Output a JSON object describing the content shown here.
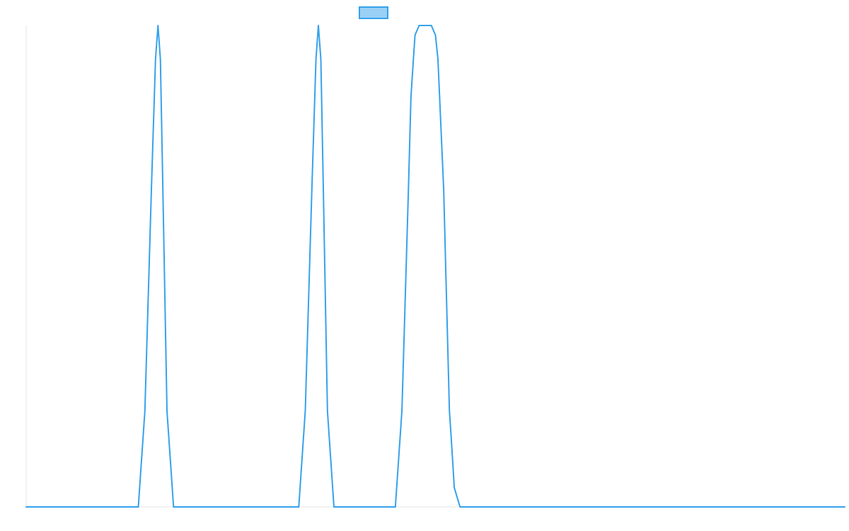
{
  "chart_data": {
    "type": "line",
    "title": "",
    "xlabel": "",
    "ylabel": "",
    "xlim": [
      0,
      100
    ],
    "ylim": [
      0,
      1
    ],
    "grid": false,
    "legend": {
      "position": "top-center",
      "entries": [
        {
          "name": "",
          "color": "#36a2eb",
          "fill": "#9ad0f5"
        }
      ]
    },
    "series": [
      {
        "name": "",
        "color": "#36a2eb",
        "x": [
          0,
          13.7,
          14.5,
          15.3,
          15.8,
          16.1,
          16.4,
          16.7,
          17.2,
          18.0,
          18.8,
          33.3,
          34.1,
          34.9,
          35.4,
          35.7,
          36.0,
          36.3,
          36.8,
          37.6,
          38.4,
          45.1,
          45.9,
          46.7,
          47.0,
          47.3,
          47.5,
          48.0,
          49.5,
          50.0,
          50.3,
          51.0,
          51.7,
          51.9,
          52.3,
          53.0,
          53.8,
          100
        ],
        "y": [
          0,
          0,
          0.2,
          0.66,
          0.93,
          1.0,
          0.93,
          0.66,
          0.2,
          0,
          0,
          0,
          0.2,
          0.66,
          0.93,
          1.0,
          0.93,
          0.66,
          0.2,
          0,
          0,
          0,
          0.2,
          0.66,
          0.85,
          0.93,
          0.98,
          1.0,
          1.0,
          0.98,
          0.93,
          0.66,
          0.2,
          0.15,
          0.04,
          0,
          0,
          0
        ]
      }
    ]
  }
}
